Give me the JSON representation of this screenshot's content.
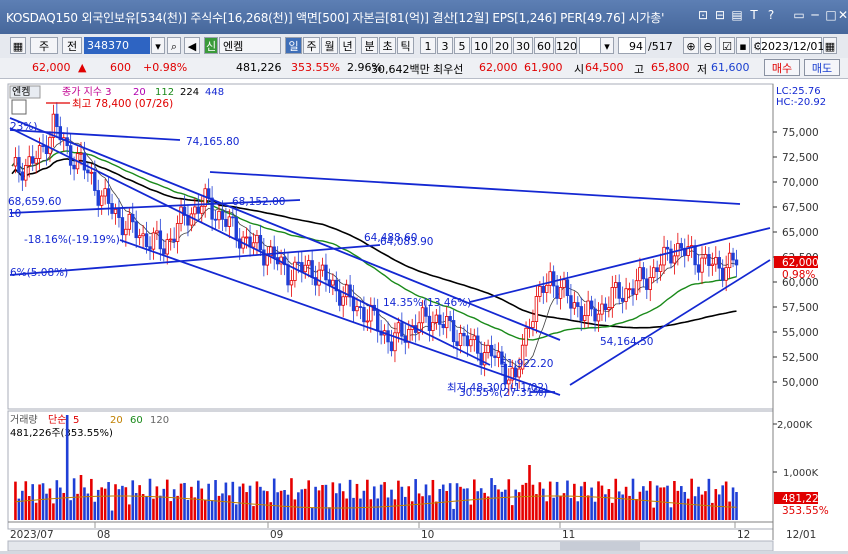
{
  "window": {
    "title": "KOSDAQ150 외국인보유[534(천)] 주식수[16,268(천)] 액면[500] 자본금[81(억)] 결산[12월] EPS[1,246] PER[49.76] 시가총'",
    "controls": [
      "⊡",
      "⊟",
      "▤",
      "T",
      "?",
      "▭",
      "─",
      "□",
      "✕"
    ]
  },
  "toolbar": {
    "period_type": "주",
    "jeon": "전",
    "code": "348370",
    "name": "엔켐",
    "sin": "신",
    "periods": [
      "일",
      "주",
      "월",
      "년",
      "분",
      "초",
      "틱"
    ],
    "minutes": [
      "1",
      "3",
      "5",
      "10",
      "20",
      "30",
      "60",
      "120"
    ],
    "count": "94",
    "total": "/517",
    "date": "2023/12/01"
  },
  "quote": {
    "price": "62,000",
    "arrow": "▲",
    "change": "600",
    "change_pct": "+0.98%",
    "volume": "481,226",
    "volume_ratio": "353.55%",
    "turnover": "2.96%",
    "amount": "30,642백만",
    "best_ask_label": "최우선",
    "best_ask": "62,000",
    "best_bid": "61,900",
    "open_label": "시",
    "open": "64,500",
    "high_label": "고",
    "high": "65,800",
    "low_label": "저",
    "low": "61,600",
    "buy": "매수",
    "sell": "매도"
  },
  "price_pane": {
    "stock_label": "엔켐",
    "ma_title": "종가 지수 3",
    "ma_periods": [
      "20",
      "112",
      "224",
      "448"
    ],
    "lc": "LC:25.76",
    "hc": "HC:-20.92",
    "current_price": "62,000",
    "current_pct": "0.98%",
    "annotations": {
      "max_label": "최고 78,400 (07/26)",
      "min_label": "최저 48,300 (11/02)",
      "min_pct": "30.55%(27.31%)",
      "pct23": "23%)",
      "val_74165": "74,165.80",
      "val_68": "68,659.60",
      "val_10": "10",
      "val_68152": "68,152.00",
      "neg1816": "-18.16%(-19.19%)",
      "val_64488": "64,488.60",
      "val_64083": "64,083.90",
      "pct6": "6%(5.08%)",
      "pct1435": "14.35%(13.46%)",
      "val_51922": "51,922.20",
      "val_54164": "54,164.50"
    },
    "y_ticks": [
      "75,000",
      "72,500",
      "70,000",
      "67,500",
      "65,000",
      "62,500",
      "60,000",
      "57,500",
      "55,000",
      "52,500",
      "50,000"
    ]
  },
  "volume_pane": {
    "title": "거래량",
    "ma_label": "단순",
    "ma_periods": [
      "5",
      "20",
      "60",
      "120"
    ],
    "summary": "481,226주(353.55%)",
    "y_ticks": [
      "2,000K",
      "1,000K"
    ],
    "current": "481,226",
    "current_pct": "353.55%"
  },
  "x_axis": {
    "labels": [
      "2023/07",
      "08",
      "09",
      "10",
      "11",
      "12",
      "12/01"
    ]
  },
  "colors": {
    "up": "#e60000",
    "down": "#1f3fd6",
    "trend": "#1428d2",
    "ma_black": "#000000",
    "ma_green": "#1a8a1a"
  }
}
